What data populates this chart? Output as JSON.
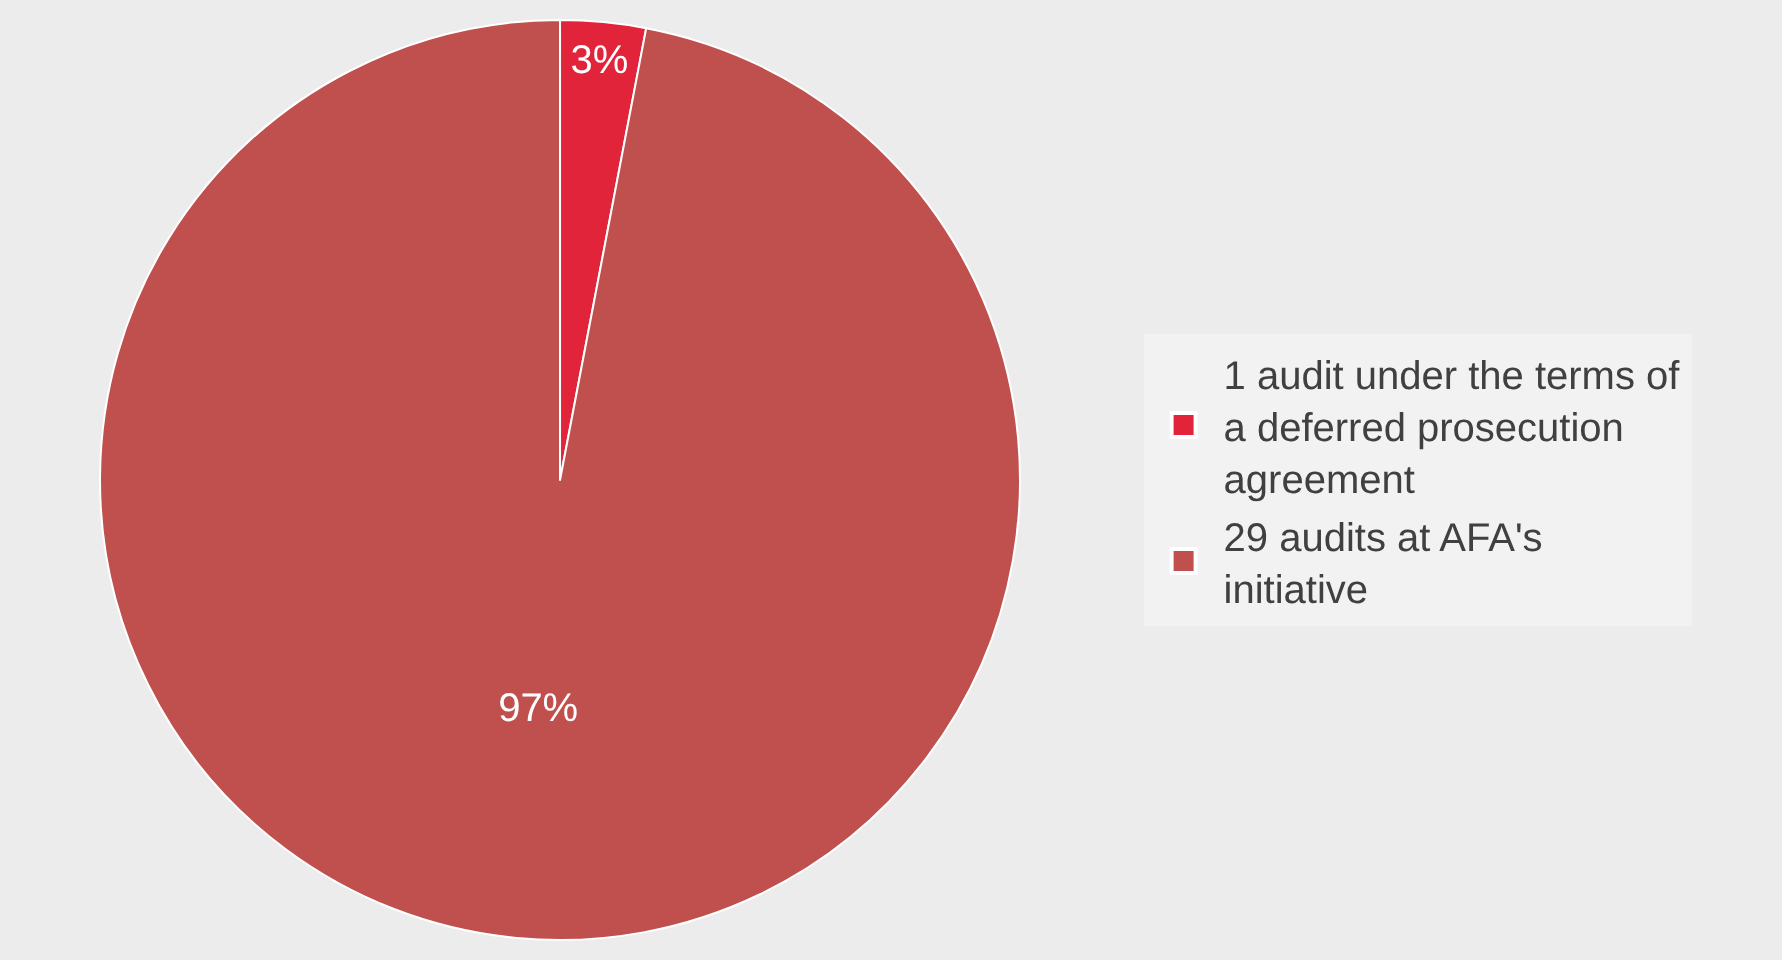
{
  "chart_data": {
    "type": "pie",
    "categories": [
      "1 audit under the terms of a deferred prosecution agreement",
      "29 audits at AFA's initiative"
    ],
    "values": [
      3,
      97
    ],
    "colors": [
      "#e2243a",
      "#c0504d"
    ],
    "value_labels": [
      "3%",
      "97%"
    ],
    "legend": "right"
  }
}
